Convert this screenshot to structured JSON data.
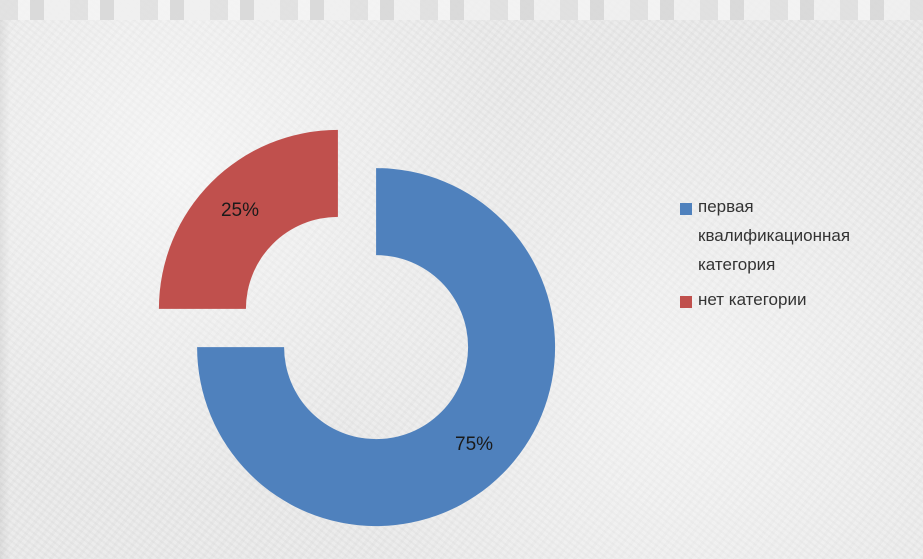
{
  "chart_data": {
    "type": "pie",
    "variant": "donut",
    "title": "",
    "series": [
      {
        "name": "первая квалификационная категория",
        "value": 75,
        "label": "75%",
        "color": "#4f81bd"
      },
      {
        "name": "нет категории",
        "value": 25,
        "label": "25%",
        "color": "#c0504d"
      }
    ],
    "legend_position": "right",
    "exploded": true
  },
  "legend": {
    "items": [
      {
        "label_line1": "первая",
        "label_line2": "квалификационная",
        "label_line3": "категория",
        "color": "#4f81bd"
      },
      {
        "label_line1": "нет категории",
        "color": "#c0504d"
      }
    ]
  }
}
